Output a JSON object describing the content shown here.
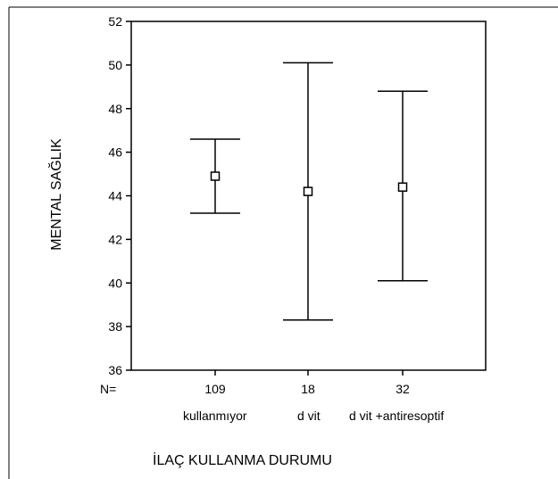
{
  "chart_data": {
    "type": "errorbar",
    "ylabel": "MENTAL SAĞLIK",
    "xlabel": "İLAÇ KULLANMA DURUMU",
    "ylim": [
      36,
      52
    ],
    "yticks": [
      36,
      38,
      40,
      42,
      44,
      46,
      48,
      50,
      52
    ],
    "n_label": "N=",
    "categories": [
      {
        "name": "kullanmıyor",
        "n": "109",
        "mean": 44.9,
        "lower": 43.2,
        "upper": 46.6
      },
      {
        "name": "d vit",
        "n": "18",
        "mean": 44.2,
        "lower": 38.3,
        "upper": 50.1
      },
      {
        "name": "d vit +antiresoptif",
        "n": "32",
        "mean": 44.4,
        "lower": 40.1,
        "upper": 48.8
      }
    ]
  }
}
